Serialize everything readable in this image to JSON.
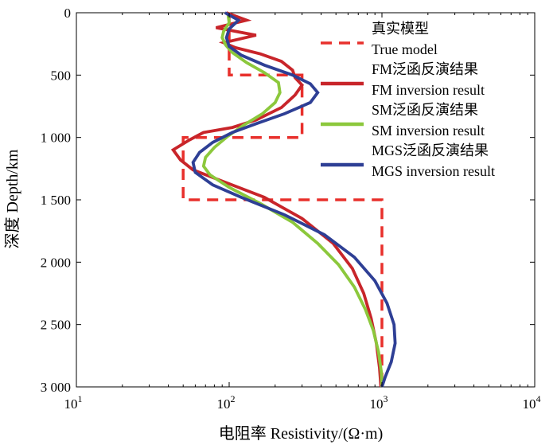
{
  "chart_data": {
    "type": "line",
    "xlabel": "电阻率 Resistivity/(Ω·m)",
    "ylabel": "深度 Depth/km",
    "x_scale": "log",
    "xlim": [
      10,
      10000
    ],
    "ylim": [
      0,
      3000
    ],
    "y_inverted": true,
    "x_ticks": [
      {
        "value": 10,
        "base": "10",
        "exp": "1"
      },
      {
        "value": 100,
        "base": "10",
        "exp": "2"
      },
      {
        "value": 1000,
        "base": "10",
        "exp": "3"
      },
      {
        "value": 10000,
        "base": "10",
        "exp": "4"
      }
    ],
    "y_ticks": [
      {
        "value": 0,
        "label": "0"
      },
      {
        "value": 500,
        "label": "500"
      },
      {
        "value": 1000,
        "label": "1 000"
      },
      {
        "value": 1500,
        "label": "1 500"
      },
      {
        "value": 2000,
        "label": "2 000"
      },
      {
        "value": 2500,
        "label": "2 500"
      },
      {
        "value": 3000,
        "label": "3 000"
      }
    ],
    "grid": false,
    "legend_position": "top-right",
    "series": [
      {
        "name": "真实模型",
        "name_en": "True model",
        "color": "#e8302c",
        "style": "dashed",
        "points": [
          [
            100,
            0
          ],
          [
            100,
            500
          ],
          [
            300,
            500
          ],
          [
            300,
            1000
          ],
          [
            50,
            1000
          ],
          [
            50,
            1500
          ],
          [
            1000,
            1500
          ],
          [
            1000,
            3000
          ]
        ]
      },
      {
        "name": "FM泛函反演结果",
        "name_en": "FM inversion result",
        "color": "#c8252a",
        "style": "solid",
        "points": [
          [
            96,
            0
          ],
          [
            130,
            60
          ],
          [
            82,
            120
          ],
          [
            150,
            180
          ],
          [
            92,
            240
          ],
          [
            110,
            280
          ],
          [
            160,
            330
          ],
          [
            220,
            390
          ],
          [
            260,
            460
          ],
          [
            270,
            520
          ],
          [
            300,
            580
          ],
          [
            270,
            660
          ],
          [
            220,
            760
          ],
          [
            150,
            860
          ],
          [
            105,
            920
          ],
          [
            68,
            960
          ],
          [
            55,
            1020
          ],
          [
            43,
            1100
          ],
          [
            48,
            1180
          ],
          [
            58,
            1260
          ],
          [
            90,
            1350
          ],
          [
            170,
            1480
          ],
          [
            300,
            1650
          ],
          [
            480,
            1850
          ],
          [
            640,
            2050
          ],
          [
            760,
            2250
          ],
          [
            850,
            2450
          ],
          [
            920,
            2650
          ],
          [
            965,
            2850
          ],
          [
            985,
            3000
          ]
        ]
      },
      {
        "name": "SM泛函反演结果",
        "name_en": "SM inversion result",
        "color": "#8cc83c",
        "style": "solid",
        "points": [
          [
            98,
            0
          ],
          [
            100,
            80
          ],
          [
            92,
            150
          ],
          [
            90,
            200
          ],
          [
            95,
            260
          ],
          [
            105,
            320
          ],
          [
            130,
            400
          ],
          [
            170,
            480
          ],
          [
            210,
            560
          ],
          [
            215,
            640
          ],
          [
            200,
            720
          ],
          [
            165,
            810
          ],
          [
            125,
            900
          ],
          [
            98,
            990
          ],
          [
            80,
            1080
          ],
          [
            70,
            1160
          ],
          [
            68,
            1230
          ],
          [
            75,
            1300
          ],
          [
            100,
            1400
          ],
          [
            160,
            1530
          ],
          [
            260,
            1680
          ],
          [
            380,
            1850
          ],
          [
            520,
            2020
          ],
          [
            660,
            2200
          ],
          [
            780,
            2380
          ],
          [
            880,
            2550
          ],
          [
            950,
            2720
          ],
          [
            990,
            2880
          ],
          [
            1000,
            3000
          ]
        ]
      },
      {
        "name": "MGS泛函反演结果",
        "name_en": "MGS inversion result",
        "color": "#2e3f95",
        "style": "solid",
        "points": [
          [
            94,
            0
          ],
          [
            115,
            60
          ],
          [
            100,
            130
          ],
          [
            96,
            200
          ],
          [
            100,
            270
          ],
          [
            120,
            340
          ],
          [
            170,
            420
          ],
          [
            260,
            500
          ],
          [
            340,
            570
          ],
          [
            380,
            640
          ],
          [
            340,
            720
          ],
          [
            230,
            810
          ],
          [
            150,
            890
          ],
          [
            105,
            960
          ],
          [
            78,
            1040
          ],
          [
            64,
            1120
          ],
          [
            58,
            1200
          ],
          [
            60,
            1280
          ],
          [
            78,
            1380
          ],
          [
            120,
            1480
          ],
          [
            230,
            1620
          ],
          [
            420,
            1780
          ],
          [
            660,
            1960
          ],
          [
            900,
            2150
          ],
          [
            1080,
            2330
          ],
          [
            1200,
            2500
          ],
          [
            1220,
            2650
          ],
          [
            1150,
            2800
          ],
          [
            1050,
            2920
          ],
          [
            1000,
            3000
          ]
        ]
      }
    ]
  }
}
